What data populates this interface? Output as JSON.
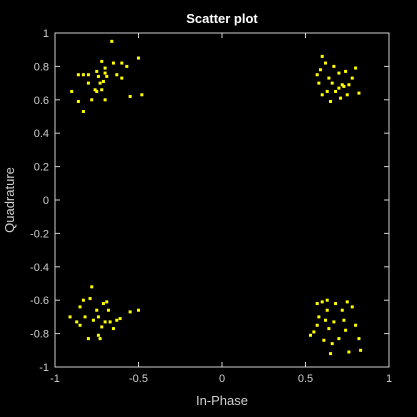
{
  "chart_data": {
    "type": "scatter",
    "title": "Scatter plot",
    "xlabel": "In-Phase",
    "ylabel": "Quadrature",
    "xlim": [
      -1,
      1
    ],
    "ylim": [
      -1,
      1
    ],
    "grid": false,
    "colors": {
      "background": "#000000",
      "axes": "#cfcfcf",
      "marker": "#ffff00"
    },
    "x_ticks": [
      "-1",
      "-0.5",
      "0",
      "0.5",
      "1"
    ],
    "y_ticks": [
      "-1",
      "-0.8",
      "-0.6",
      "-0.4",
      "-0.2",
      "0",
      "0.2",
      "0.4",
      "0.6",
      "0.8",
      "1"
    ],
    "x_tick_values": [
      -1,
      -0.5,
      0,
      0.5,
      1
    ],
    "y_tick_values": [
      -1,
      -0.8,
      -0.6,
      -0.4,
      -0.2,
      0,
      0.2,
      0.4,
      0.6,
      0.8,
      1
    ],
    "points": [
      [
        -0.9,
        0.65
      ],
      [
        -0.86,
        0.75
      ],
      [
        -0.86,
        0.59
      ],
      [
        -0.83,
        0.75
      ],
      [
        -0.83,
        0.53
      ],
      [
        -0.8,
        0.75
      ],
      [
        -0.8,
        0.7
      ],
      [
        -0.78,
        0.6
      ],
      [
        -0.76,
        0.66
      ],
      [
        -0.75,
        0.65
      ],
      [
        -0.75,
        0.77
      ],
      [
        -0.74,
        0.74
      ],
      [
        -0.73,
        0.7
      ],
      [
        -0.72,
        0.83
      ],
      [
        -0.72,
        0.66
      ],
      [
        -0.71,
        0.71
      ],
      [
        -0.7,
        0.79
      ],
      [
        -0.7,
        0.76
      ],
      [
        -0.7,
        0.6
      ],
      [
        -0.69,
        0.74
      ],
      [
        -0.66,
        0.95
      ],
      [
        -0.65,
        0.82
      ],
      [
        -0.63,
        0.75
      ],
      [
        -0.6,
        0.82
      ],
      [
        -0.6,
        0.73
      ],
      [
        -0.57,
        0.8
      ],
      [
        -0.55,
        0.62
      ],
      [
        -0.5,
        0.85
      ],
      [
        -0.48,
        0.63
      ],
      [
        0.57,
        0.75
      ],
      [
        0.58,
        0.7
      ],
      [
        0.6,
        0.86
      ],
      [
        0.6,
        0.63
      ],
      [
        0.62,
        0.82
      ],
      [
        0.63,
        0.65
      ],
      [
        0.64,
        0.73
      ],
      [
        0.65,
        0.59
      ],
      [
        0.66,
        0.7
      ],
      [
        0.67,
        0.8
      ],
      [
        0.68,
        0.65
      ],
      [
        0.7,
        0.76
      ],
      [
        0.7,
        0.67
      ],
      [
        0.72,
        0.69
      ],
      [
        0.74,
        0.77
      ],
      [
        0.75,
        0.63
      ],
      [
        0.76,
        0.69
      ],
      [
        0.78,
        0.73
      ],
      [
        0.8,
        0.79
      ],
      [
        0.82,
        0.64
      ],
      [
        0.59,
        0.78
      ],
      [
        0.71,
        0.61
      ],
      [
        0.73,
        0.68
      ],
      [
        -0.91,
        -0.7
      ],
      [
        -0.87,
        -0.73
      ],
      [
        -0.85,
        -0.64
      ],
      [
        -0.85,
        -0.75
      ],
      [
        -0.83,
        -0.6
      ],
      [
        -0.82,
        -0.7
      ],
      [
        -0.8,
        -0.83
      ],
      [
        -0.79,
        -0.59
      ],
      [
        -0.78,
        -0.52
      ],
      [
        -0.77,
        -0.72
      ],
      [
        -0.75,
        -0.66
      ],
      [
        -0.74,
        -0.7
      ],
      [
        -0.74,
        -0.81
      ],
      [
        -0.73,
        -0.83
      ],
      [
        -0.72,
        -0.76
      ],
      [
        -0.71,
        -0.62
      ],
      [
        -0.7,
        -0.73
      ],
      [
        -0.69,
        -0.61
      ],
      [
        -0.68,
        -0.66
      ],
      [
        -0.67,
        -0.73
      ],
      [
        -0.65,
        -0.77
      ],
      [
        -0.63,
        -0.72
      ],
      [
        -0.61,
        -0.71
      ],
      [
        -0.55,
        -0.67
      ],
      [
        -0.5,
        -0.66
      ],
      [
        0.53,
        -0.81
      ],
      [
        0.55,
        -0.79
      ],
      [
        0.57,
        -0.75
      ],
      [
        0.57,
        -0.62
      ],
      [
        0.58,
        -0.7
      ],
      [
        0.6,
        -0.61
      ],
      [
        0.61,
        -0.84
      ],
      [
        0.62,
        -0.72
      ],
      [
        0.63,
        -0.6
      ],
      [
        0.63,
        -0.66
      ],
      [
        0.64,
        -0.77
      ],
      [
        0.65,
        -0.92
      ],
      [
        0.66,
        -0.86
      ],
      [
        0.67,
        -0.73
      ],
      [
        0.68,
        -0.62
      ],
      [
        0.7,
        -0.83
      ],
      [
        0.72,
        -0.66
      ],
      [
        0.73,
        -0.72
      ],
      [
        0.74,
        -0.78
      ],
      [
        0.75,
        -0.61
      ],
      [
        0.76,
        -0.91
      ],
      [
        0.78,
        -0.64
      ],
      [
        0.8,
        -0.75
      ],
      [
        0.82,
        -0.83
      ],
      [
        0.83,
        -0.9
      ]
    ]
  }
}
